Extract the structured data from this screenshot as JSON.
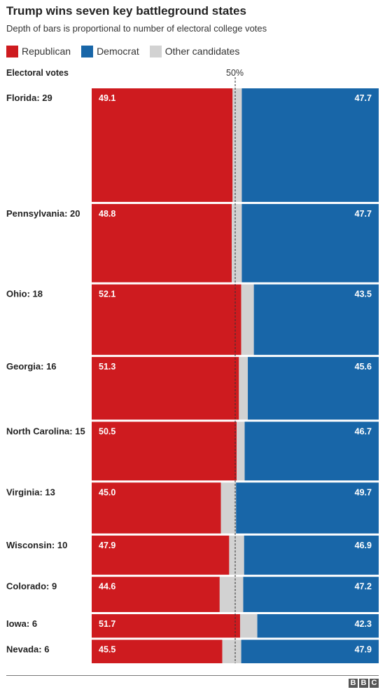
{
  "title": "Trump wins seven key battleground states",
  "subtitle": "Depth of bars is proportional to number of electoral college votes",
  "legend": [
    {
      "label": "Republican",
      "color": "#ce1b1f"
    },
    {
      "label": "Democrat",
      "color": "#1866a8"
    },
    {
      "label": "Other candidates",
      "color": "#d2d2d2"
    }
  ],
  "axis_title": "Electoral votes",
  "reference_label": "50%",
  "branding": {
    "logo": "BBC",
    "letters": [
      "B",
      "B",
      "C"
    ]
  },
  "chart_data": {
    "type": "bar",
    "orientation": "horizontal",
    "stacked": true,
    "xlim": [
      0,
      100
    ],
    "reference_line": 50,
    "series": [
      {
        "name": "Republican",
        "color": "#ce1b1f"
      },
      {
        "name": "Democrat",
        "color": "#1866a8"
      },
      {
        "name": "Other candidates",
        "color": "#d2d2d2"
      }
    ],
    "categories": [
      {
        "label": "Florida: 29",
        "electoral_votes": 29,
        "republican": 49.1,
        "democrat": 47.7
      },
      {
        "label": "Pennsylvania: 20",
        "electoral_votes": 20,
        "republican": 48.8,
        "democrat": 47.7
      },
      {
        "label": "Ohio: 18",
        "electoral_votes": 18,
        "republican": 52.1,
        "democrat": 43.5
      },
      {
        "label": "Georgia: 16",
        "electoral_votes": 16,
        "republican": 51.3,
        "democrat": 45.6
      },
      {
        "label": "North Carolina: 15",
        "electoral_votes": 15,
        "republican": 50.5,
        "democrat": 46.7
      },
      {
        "label": "Virginia: 13",
        "electoral_votes": 13,
        "republican": 45.0,
        "democrat": 49.7
      },
      {
        "label": "Wisconsin: 10",
        "electoral_votes": 10,
        "republican": 47.9,
        "democrat": 46.9
      },
      {
        "label": "Colorado: 9",
        "electoral_votes": 9,
        "republican": 44.6,
        "democrat": 47.2
      },
      {
        "label": "Iowa: 6",
        "electoral_votes": 6,
        "republican": 51.7,
        "democrat": 42.3
      },
      {
        "label": "Nevada: 6",
        "electoral_votes": 6,
        "republican": 45.5,
        "democrat": 47.9
      }
    ]
  }
}
